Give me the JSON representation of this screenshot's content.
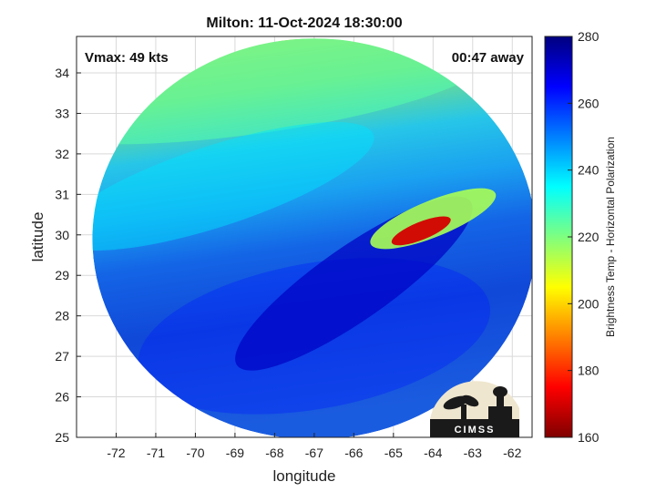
{
  "chart_data": {
    "type": "heatmap",
    "title": "Milton: 11-Oct-2024 18:30:00",
    "xlabel": "longitude",
    "ylabel": "latitude",
    "xlim": [
      -73,
      -61.5
    ],
    "ylim": [
      25,
      34.9
    ],
    "xticks": [
      -72,
      -71,
      -70,
      -69,
      -68,
      -67,
      -66,
      -65,
      -64,
      -63,
      -62
    ],
    "yticks": [
      25,
      26,
      27,
      28,
      29,
      30,
      31,
      32,
      33,
      34
    ],
    "grid": true,
    "annotations": {
      "vmax": "Vmax: 49 kts",
      "time_away": "00:47 away"
    },
    "colorbar": {
      "label": "Brightness Temp - Horizontal Polarization",
      "min": 160,
      "max": 280,
      "ticks": [
        160,
        180,
        200,
        220,
        240,
        260,
        280
      ],
      "colormap": "jet"
    },
    "swath": {
      "center": [
        -67.0,
        29.9
      ],
      "radius_lon": 5.6,
      "radius_lat": 4.95
    },
    "regions": [
      {
        "name": "northern-dry-band",
        "center": [
          -68.5,
          33.6
        ],
        "value": 225
      },
      {
        "name": "mid-gradient-band",
        "center": [
          -69.5,
          31.2
        ],
        "value": 238
      },
      {
        "name": "southern-moist-region",
        "center": [
          -67.0,
          27.5
        ],
        "value": 262
      },
      {
        "name": "deep-core-band",
        "center": [
          -66.0,
          28.8
        ],
        "value": 272
      },
      {
        "name": "rain-band-warm",
        "center": [
          -64.0,
          30.4
        ],
        "value": 215
      },
      {
        "name": "rain-band-core",
        "center": [
          -64.3,
          30.1
        ],
        "value": 170
      }
    ]
  },
  "logo": {
    "text": "CIMSS"
  },
  "colors": {
    "frame": "#222222",
    "grid": "#d9d9d9",
    "logo_bg": "#efe6cf",
    "logo_fg": "#1a1a1a"
  }
}
